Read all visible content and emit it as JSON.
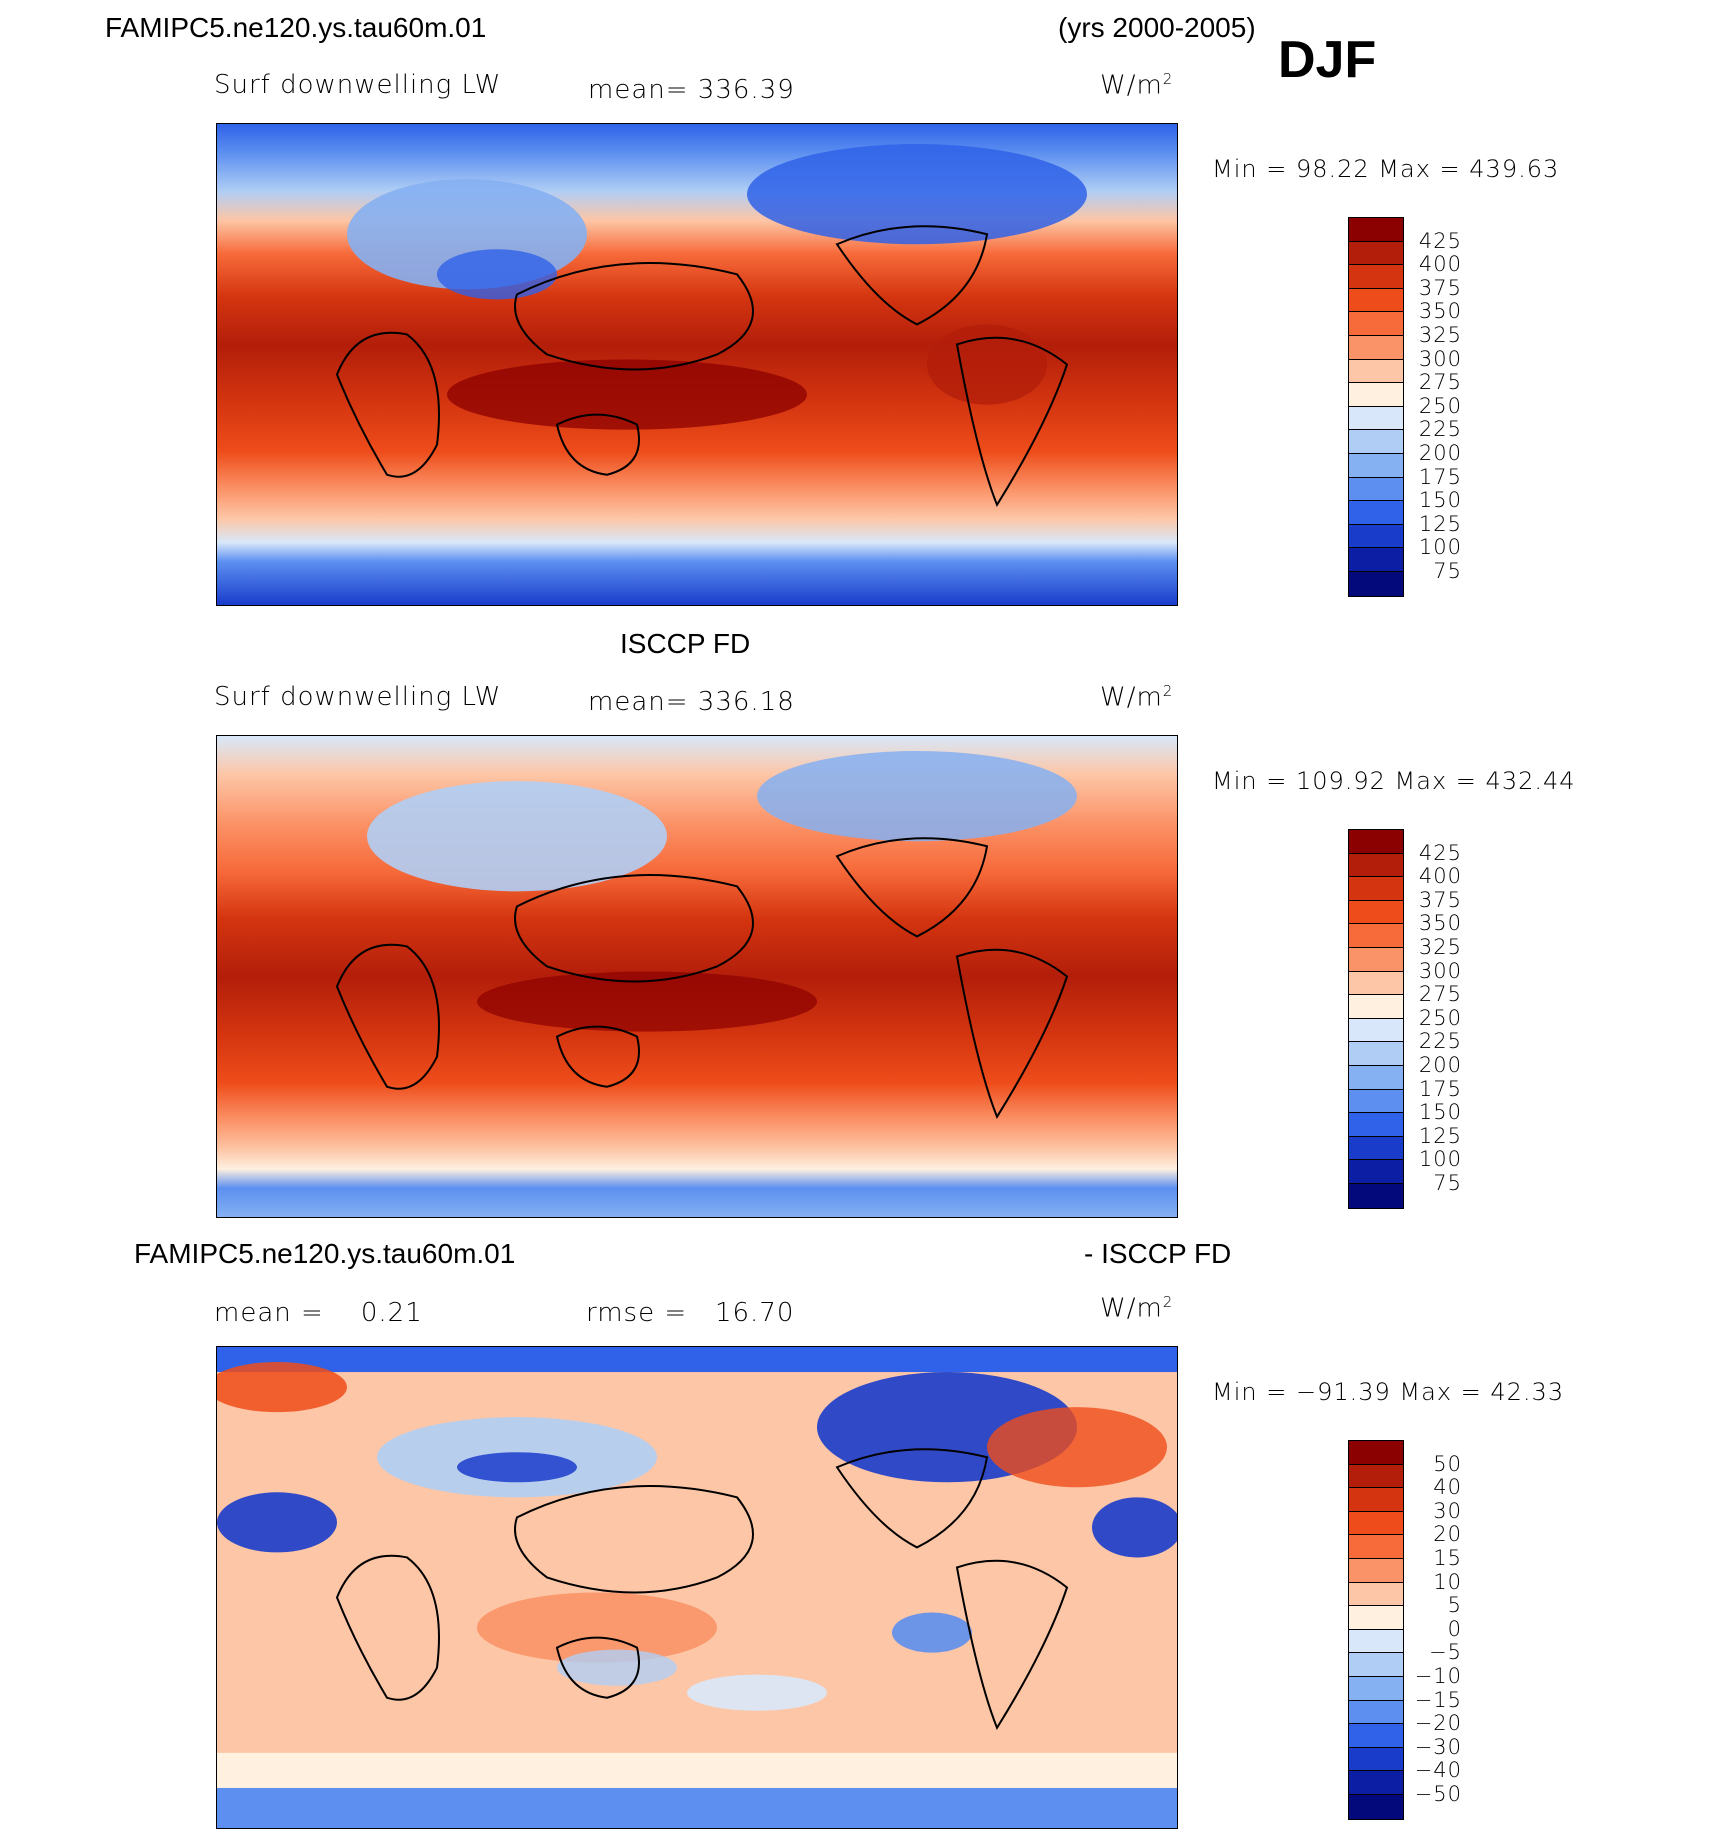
{
  "header": {
    "case": "FAMIPC5.ne120.ys.tau60m.01",
    "years": "(yrs 2000-2005)",
    "season": "DJF"
  },
  "panels": [
    {
      "title_left": "Surf downwelling LW",
      "mean_label": "mean=",
      "mean_value": "336.39",
      "units": "W/m",
      "units_sup": "2",
      "stats": "Min =  98.22 Max = 439.63",
      "colorbar_labels": [
        "425",
        "400",
        "375",
        "350",
        "325",
        "300",
        "275",
        "250",
        "225",
        "200",
        "175",
        "150",
        "125",
        "100",
        "75"
      ],
      "colorbar_colors": [
        "#8b0000",
        "#b31e0a",
        "#d43510",
        "#ee4c1a",
        "#f76a3a",
        "#fb9368",
        "#fdc6a6",
        "#fff0e0",
        "#d8e8fa",
        "#b0cef5",
        "#85b0f2",
        "#5c8ff0",
        "#2f62e8",
        "#1a3ccb",
        "#0c1ea4",
        "#03087b"
      ]
    },
    {
      "header": "ISCCP FD",
      "title_left": "Surf downwelling LW",
      "mean_label": "mean=",
      "mean_value": "336.18",
      "units": "W/m",
      "units_sup": "2",
      "stats": "Min = 109.92 Max = 432.44",
      "colorbar_labels": [
        "425",
        "400",
        "375",
        "350",
        "325",
        "300",
        "275",
        "250",
        "225",
        "200",
        "175",
        "150",
        "125",
        "100",
        "75"
      ],
      "colorbar_colors": [
        "#8b0000",
        "#b31e0a",
        "#d43510",
        "#ee4c1a",
        "#f76a3a",
        "#fb9368",
        "#fdc6a6",
        "#fff0e0",
        "#d8e8fa",
        "#b0cef5",
        "#85b0f2",
        "#5c8ff0",
        "#2f62e8",
        "#1a3ccb",
        "#0c1ea4",
        "#03087b"
      ]
    },
    {
      "header_left": "FAMIPC5.ne120.ys.tau60m.01",
      "header_right": "- ISCCP FD",
      "mean_label": "mean =",
      "mean_value": "0.21",
      "rmse_label": "rmse =",
      "rmse_value": "16.70",
      "units": "W/m",
      "units_sup": "2",
      "stats": "Min = −91.39 Max =   42.33",
      "colorbar_labels": [
        "50",
        "40",
        "30",
        "20",
        "15",
        "10",
        "5",
        "0",
        "−5",
        "−10",
        "−15",
        "−20",
        "−30",
        "−40",
        "−50"
      ],
      "colorbar_colors": [
        "#8b0000",
        "#b31e0a",
        "#d43510",
        "#ee4c1a",
        "#f76a3a",
        "#fb9368",
        "#fdc6a6",
        "#fff0e0",
        "#d8e8fa",
        "#b0cef5",
        "#85b0f2",
        "#5c8ff0",
        "#2f62e8",
        "#1a3ccb",
        "#0c1ea4",
        "#03087b"
      ]
    }
  ]
}
